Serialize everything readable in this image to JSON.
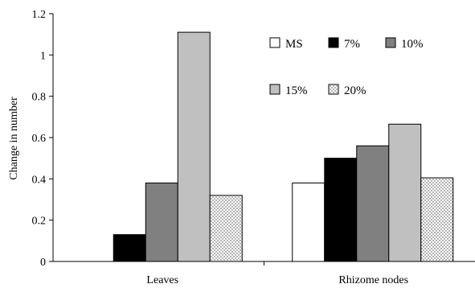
{
  "chart_data": {
    "type": "bar",
    "title": "",
    "xlabel": "",
    "ylabel": "Change in number",
    "categories": [
      "Leaves",
      "Rhizome nodes"
    ],
    "series": [
      {
        "name": "MS",
        "values": [
          0,
          0.38
        ],
        "fill": "#ffffff",
        "pattern": "none"
      },
      {
        "name": "7%",
        "values": [
          0.13,
          0.5
        ],
        "fill": "#000000",
        "pattern": "none"
      },
      {
        "name": "10%",
        "values": [
          0.38,
          0.56
        ],
        "fill": "#808080",
        "pattern": "none"
      },
      {
        "name": "15%",
        "values": [
          1.11,
          0.665
        ],
        "fill": "#c0c0c0",
        "pattern": "none"
      },
      {
        "name": "20%",
        "values": [
          0.32,
          0.405
        ],
        "fill": "#ffffff",
        "pattern": "dots"
      }
    ],
    "ylim": [
      0,
      1.2
    ],
    "yticks": [
      "0",
      "0.2",
      "0.4",
      "0.6",
      "0.8",
      "1",
      "1.2"
    ],
    "ytick_values": [
      0,
      0.2,
      0.4,
      0.6,
      0.8,
      1.0,
      1.2
    ],
    "grid": false,
    "legend": "top-right"
  }
}
